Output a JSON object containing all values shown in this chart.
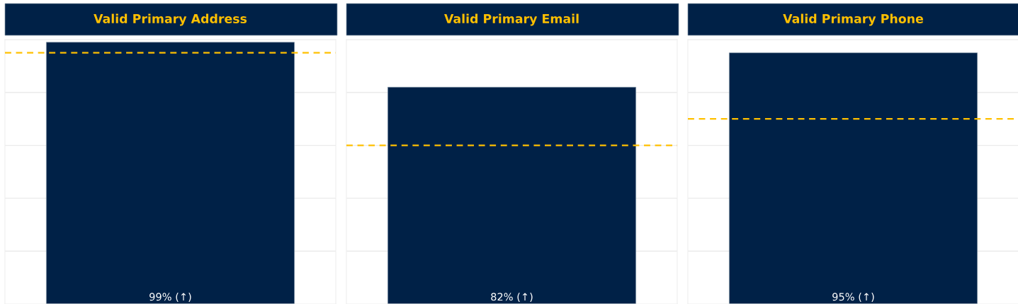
{
  "chart_data": [
    {
      "type": "bar",
      "title": "Valid Primary Address",
      "categories": [
        null
      ],
      "series": [
        {
          "color": "#002147",
          "values": [
            99
          ],
          "value_labels": [
            "99% (↑)"
          ]
        }
      ],
      "ylim": [
        0,
        100
      ],
      "yticks": [
        {
          "value": 20,
          "label": null
        },
        {
          "value": 40,
          "label": null
        },
        {
          "value": 60,
          "label": null
        },
        {
          "value": 80,
          "label": null
        },
        {
          "value": 100,
          "label": null
        }
      ],
      "grid": "y",
      "ref_lines": [
        {
          "axis": "y",
          "value": 95,
          "color": "#ffc000",
          "line_style": "dashed"
        }
      ]
    },
    {
      "type": "bar",
      "title": "Valid Primary Email",
      "categories": [
        null
      ],
      "series": [
        {
          "color": "#002147",
          "values": [
            82
          ],
          "value_labels": [
            "82% (↑)"
          ]
        }
      ],
      "ylim": [
        0,
        100
      ],
      "yticks": [
        {
          "value": 20,
          "label": null
        },
        {
          "value": 40,
          "label": null
        },
        {
          "value": 60,
          "label": null
        },
        {
          "value": 80,
          "label": null
        },
        {
          "value": 100,
          "label": null
        }
      ],
      "grid": "y",
      "ref_lines": [
        {
          "axis": "y",
          "value": 60,
          "color": "#ffc000",
          "line_style": "dashed"
        }
      ]
    },
    {
      "type": "bar",
      "title": "Valid Primary Phone",
      "categories": [
        null
      ],
      "series": [
        {
          "color": "#002147",
          "values": [
            95
          ],
          "value_labels": [
            "95% (↑)"
          ]
        }
      ],
      "ylim": [
        0,
        100
      ],
      "yticks": [
        {
          "value": 20,
          "label": null
        },
        {
          "value": 40,
          "label": null
        },
        {
          "value": 60,
          "label": null
        },
        {
          "value": 80,
          "label": null
        },
        {
          "value": 100,
          "label": null
        }
      ],
      "grid": "y",
      "ref_lines": [
        {
          "axis": "y",
          "value": 70,
          "color": "#ffc000",
          "line_style": "dashed"
        }
      ]
    }
  ]
}
